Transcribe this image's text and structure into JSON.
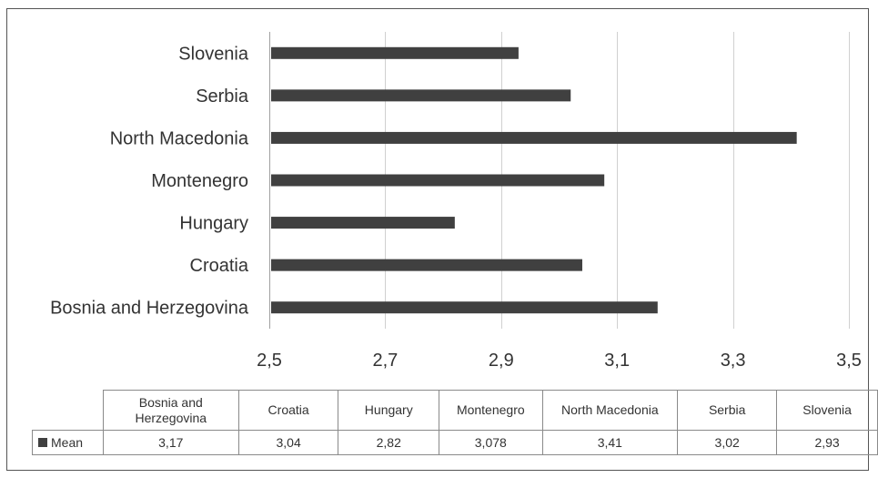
{
  "chart_data": {
    "type": "bar",
    "orientation": "horizontal",
    "categories": [
      "Slovenia",
      "Serbia",
      "North Macedonia",
      "Montenegro",
      "Hungary",
      "Croatia",
      "Bosnia and Herzegovina"
    ],
    "series": [
      {
        "name": "Mean",
        "values": [
          2.93,
          3.02,
          3.41,
          3.078,
          2.82,
          3.04,
          3.17
        ],
        "color": "#404040"
      }
    ],
    "xlim": [
      2.5,
      3.5
    ],
    "x_ticks": [
      "2,5",
      "2,7",
      "2,9",
      "3,1",
      "3,3",
      "3,5"
    ],
    "grid": true,
    "data_table": {
      "columns": [
        "Bosnia and Herzegovina",
        "Croatia",
        "Hungary",
        "Montenegro",
        "North Macedonia",
        "Serbia",
        "Slovenia"
      ],
      "row_label": "Mean",
      "values": [
        "3,17",
        "3,04",
        "2,82",
        "3,078",
        "3,41",
        "3,02",
        "2,93"
      ]
    }
  }
}
